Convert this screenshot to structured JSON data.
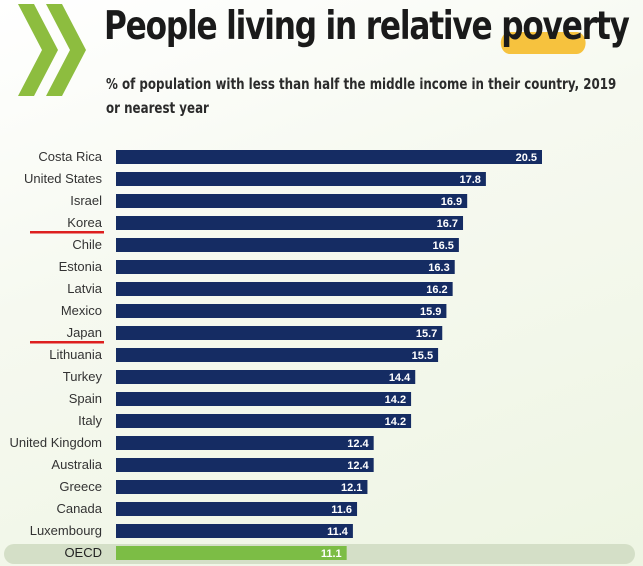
{
  "header": {
    "title_main": "People living in relative ",
    "title_highlight": "poverty",
    "subtitle": "% of population with less than half the middle income in their country, 2019 or nearest year"
  },
  "colors": {
    "bar": "#152c63",
    "oecd_bar": "#7cbd45",
    "oecd_band": "#d4dfc7",
    "highlight": "#f6c23e",
    "underline": "#dd1f1f",
    "logo": "#8dbd3f"
  },
  "icons": {
    "logo": "oecd-chevron-logo"
  },
  "chart_data": {
    "type": "bar",
    "orientation": "horizontal",
    "title": "People living in relative poverty",
    "subtitle": "% of population with less than half the middle income in their country, 2019 or nearest year",
    "xlabel": "",
    "ylabel": "",
    "xlim": [
      0,
      20.5
    ],
    "grid": false,
    "categories": [
      "Costa Rica",
      "United States",
      "Israel",
      "Korea",
      "Chile",
      "Estonia",
      "Latvia",
      "Mexico",
      "Japan",
      "Lithuania",
      "Turkey",
      "Spain",
      "Italy",
      "United Kingdom",
      "Australia",
      "Greece",
      "Canada",
      "Luxembourg",
      "OECD"
    ],
    "values": [
      20.5,
      17.8,
      16.9,
      16.7,
      16.5,
      16.3,
      16.2,
      15.9,
      15.7,
      15.5,
      14.4,
      14.2,
      14.2,
      12.4,
      12.4,
      12.1,
      11.6,
      11.4,
      11.1
    ],
    "value_labels": [
      "20.5",
      "17.8",
      "16.9",
      "16.7",
      "16.5",
      "16.3",
      "16.2",
      "15.9",
      "15.7",
      "15.5",
      "14.4",
      "14.2",
      "14.2",
      "12.4",
      "12.4",
      "12.1",
      "11.6",
      "11.4",
      "11.1"
    ],
    "underlined_categories": [
      "Korea",
      "Japan"
    ],
    "highlighted_category": "OECD"
  }
}
